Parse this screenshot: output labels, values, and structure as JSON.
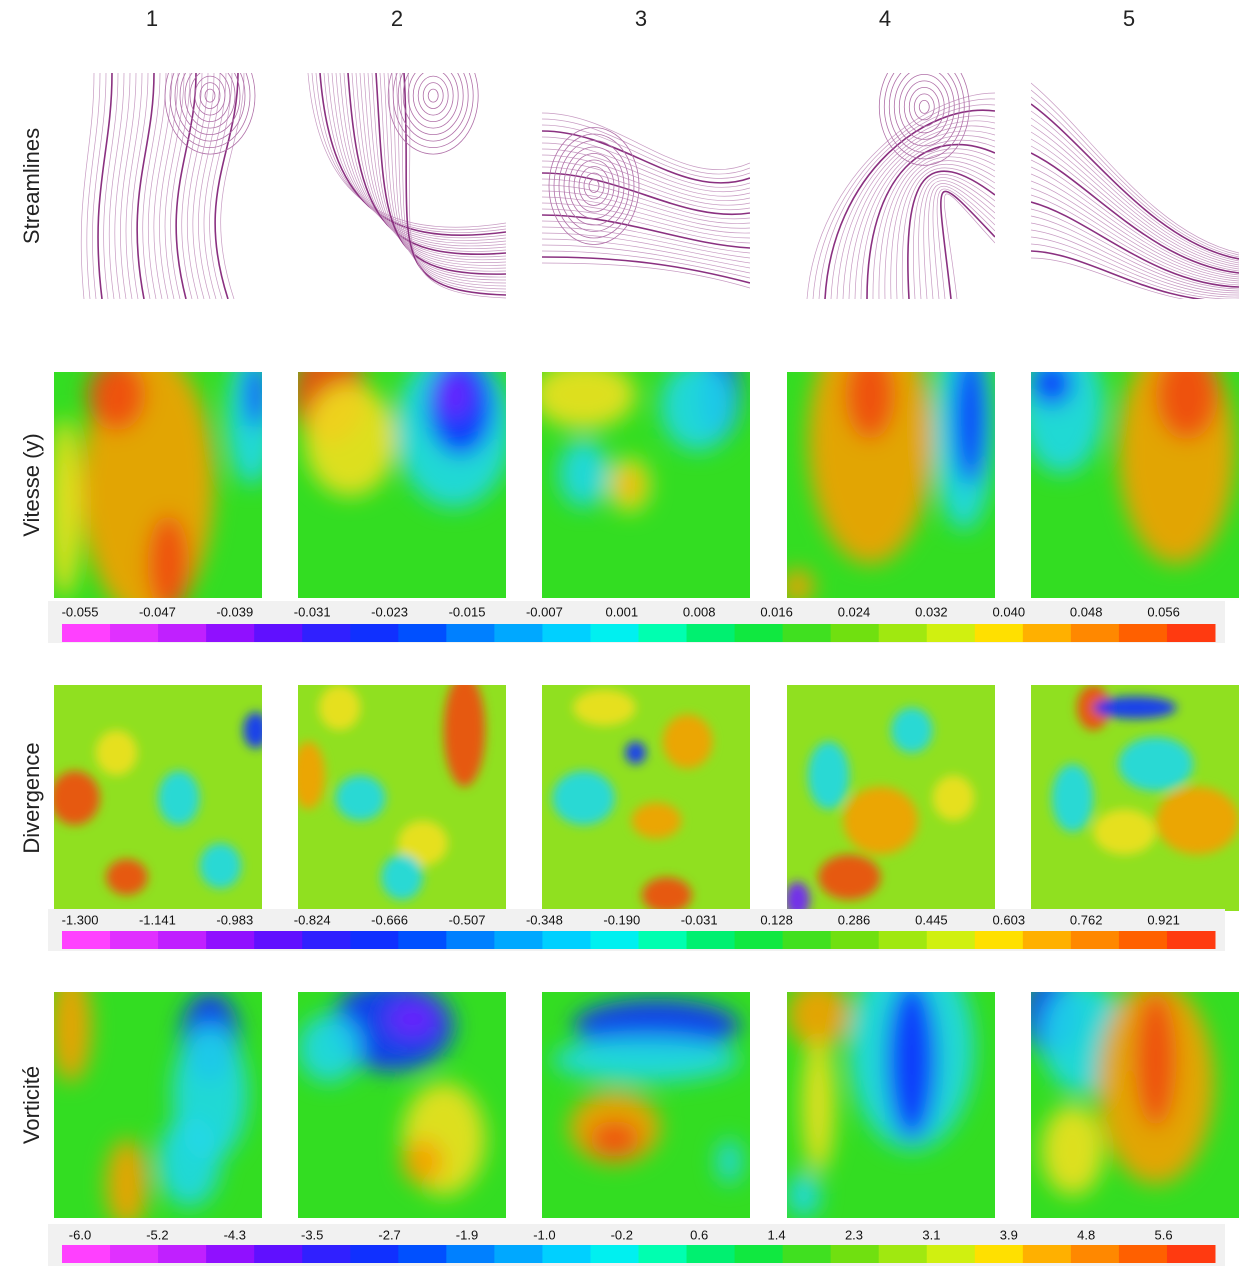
{
  "columns": [
    "1",
    "2",
    "3",
    "4",
    "5"
  ],
  "rows": [
    {
      "label": "Streamlines"
    },
    {
      "label": "Vitesse (y)",
      "scale": [
        "-0.055",
        "-0.047",
        "-0.039",
        "-0.031",
        "-0.023",
        "-0.015",
        "-0.007",
        "0.001",
        "0.008",
        "0.016",
        "0.024",
        "0.032",
        "0.040",
        "0.048",
        "0.056"
      ]
    },
    {
      "label": "Divergence",
      "scale": [
        "-1.300",
        "-1.141",
        "-0.983",
        "-0.824",
        "-0.666",
        "-0.507",
        "-0.348",
        "-0.190",
        "-0.031",
        "0.128",
        "0.286",
        "0.445",
        "0.603",
        "0.762",
        "0.921"
      ]
    },
    {
      "label": "Vorticité",
      "scale": [
        "-6.0",
        "-5.2",
        "-4.3",
        "-3.5",
        "-2.7",
        "-1.9",
        "-1.0",
        "-0.2",
        "0.6",
        "1.4",
        "2.3",
        "3.1",
        "3.9",
        "4.8",
        "5.6"
      ]
    }
  ]
}
